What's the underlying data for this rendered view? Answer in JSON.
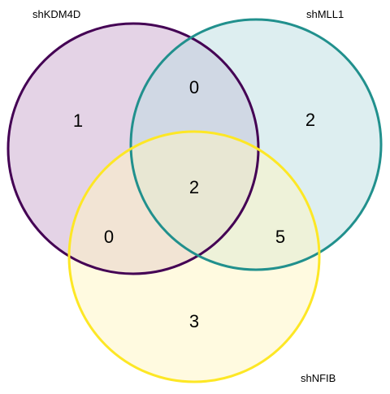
{
  "diagram": {
    "type": "venn-3",
    "sets": [
      {
        "id": "A",
        "name": "shKDM4D",
        "stroke": "#440154",
        "fill": "#c9a8cd"
      },
      {
        "id": "B",
        "name": "shMLL1",
        "stroke": "#21908d",
        "fill": "#bcdee2"
      },
      {
        "id": "C",
        "name": "shNFIB",
        "stroke": "#fde725",
        "fill": "#fff6c2"
      }
    ],
    "regions": {
      "A_only": "1",
      "B_only": "2",
      "C_only": "3",
      "A_B": "0",
      "A_C": "0",
      "B_C": "5",
      "A_B_C": "2"
    }
  }
}
